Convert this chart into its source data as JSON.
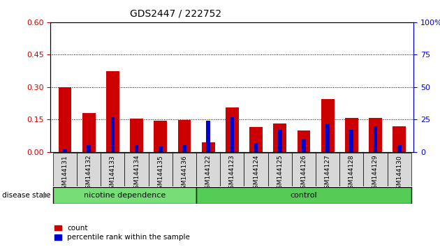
{
  "title": "GDS2447 / 222752",
  "categories": [
    "GSM144131",
    "GSM144132",
    "GSM144133",
    "GSM144134",
    "GSM144135",
    "GSM144136",
    "GSM144122",
    "GSM144123",
    "GSM144124",
    "GSM144125",
    "GSM144126",
    "GSM144127",
    "GSM144128",
    "GSM144129",
    "GSM144130"
  ],
  "count_values": [
    0.3,
    0.18,
    0.375,
    0.155,
    0.143,
    0.148,
    0.045,
    0.205,
    0.115,
    0.132,
    0.1,
    0.245,
    0.158,
    0.158,
    0.118
  ],
  "percentile_values": [
    2,
    5,
    27,
    5,
    4,
    5,
    24,
    27,
    7,
    17,
    10,
    22,
    17,
    20,
    5
  ],
  "nicotine_count": 6,
  "control_count": 9,
  "group1_label": "nicotine dependence",
  "group2_label": "control",
  "disease_state_label": "disease state",
  "legend_count": "count",
  "legend_percentile": "percentile rank within the sample",
  "ylim_left": [
    0,
    0.6
  ],
  "ylim_right": [
    0,
    100
  ],
  "yticks_left": [
    0,
    0.15,
    0.3,
    0.45,
    0.6
  ],
  "yticks_right": [
    0,
    25,
    50,
    75,
    100
  ],
  "bar_color_count": "#cc0000",
  "bar_color_percentile": "#0000cc",
  "bar_width": 0.55,
  "group1_color": "#77DD77",
  "group2_color": "#55CC55",
  "tick_bg_color": "#cccccc",
  "tick_label_color_left": "#cc0000",
  "tick_label_color_right": "#0000cc",
  "plot_bg_color": "#ffffff"
}
